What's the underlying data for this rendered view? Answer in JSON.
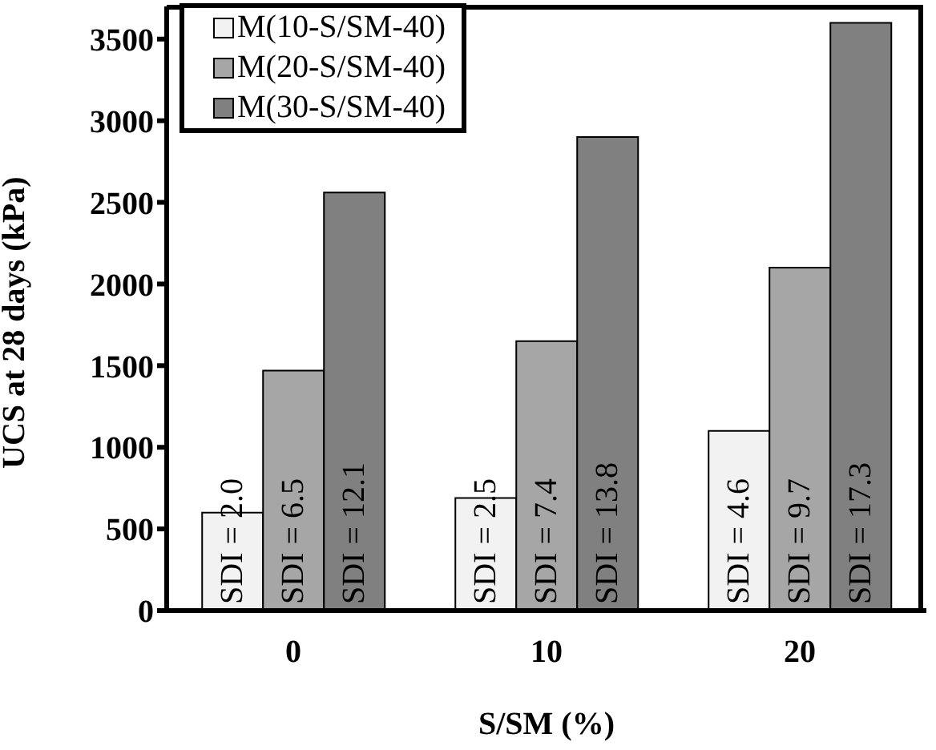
{
  "chart_data": {
    "type": "bar",
    "xlabel": "S/SM (%)",
    "ylabel": "UCS at 28 days (kPa)",
    "categories": [
      "0",
      "10",
      "20"
    ],
    "series": [
      {
        "name": "M(10-S/SM-40)",
        "color": "#f2f2f2",
        "values": [
          600,
          690,
          1100
        ]
      },
      {
        "name": "M(20-S/SM-40)",
        "color": "#a6a6a6",
        "values": [
          1470,
          1650,
          2100
        ]
      },
      {
        "name": "M(30-S/SM-40)",
        "color": "#808080",
        "values": [
          2560,
          2900,
          3600
        ]
      }
    ],
    "annotations": [
      "SDI = 2.0",
      "SDI = 2.5",
      "SDI = 4.6",
      "SDI = 6.5",
      "SDI = 7.4",
      "SDI = 9.7",
      "SDI = 12.1",
      "SDI = 13.8",
      "SDI = 17.3"
    ],
    "ylim": [
      0,
      3700
    ],
    "yticks": [
      0,
      500,
      1000,
      1500,
      2000,
      2500,
      3000,
      3500
    ],
    "grid": false,
    "legend": "top left"
  }
}
